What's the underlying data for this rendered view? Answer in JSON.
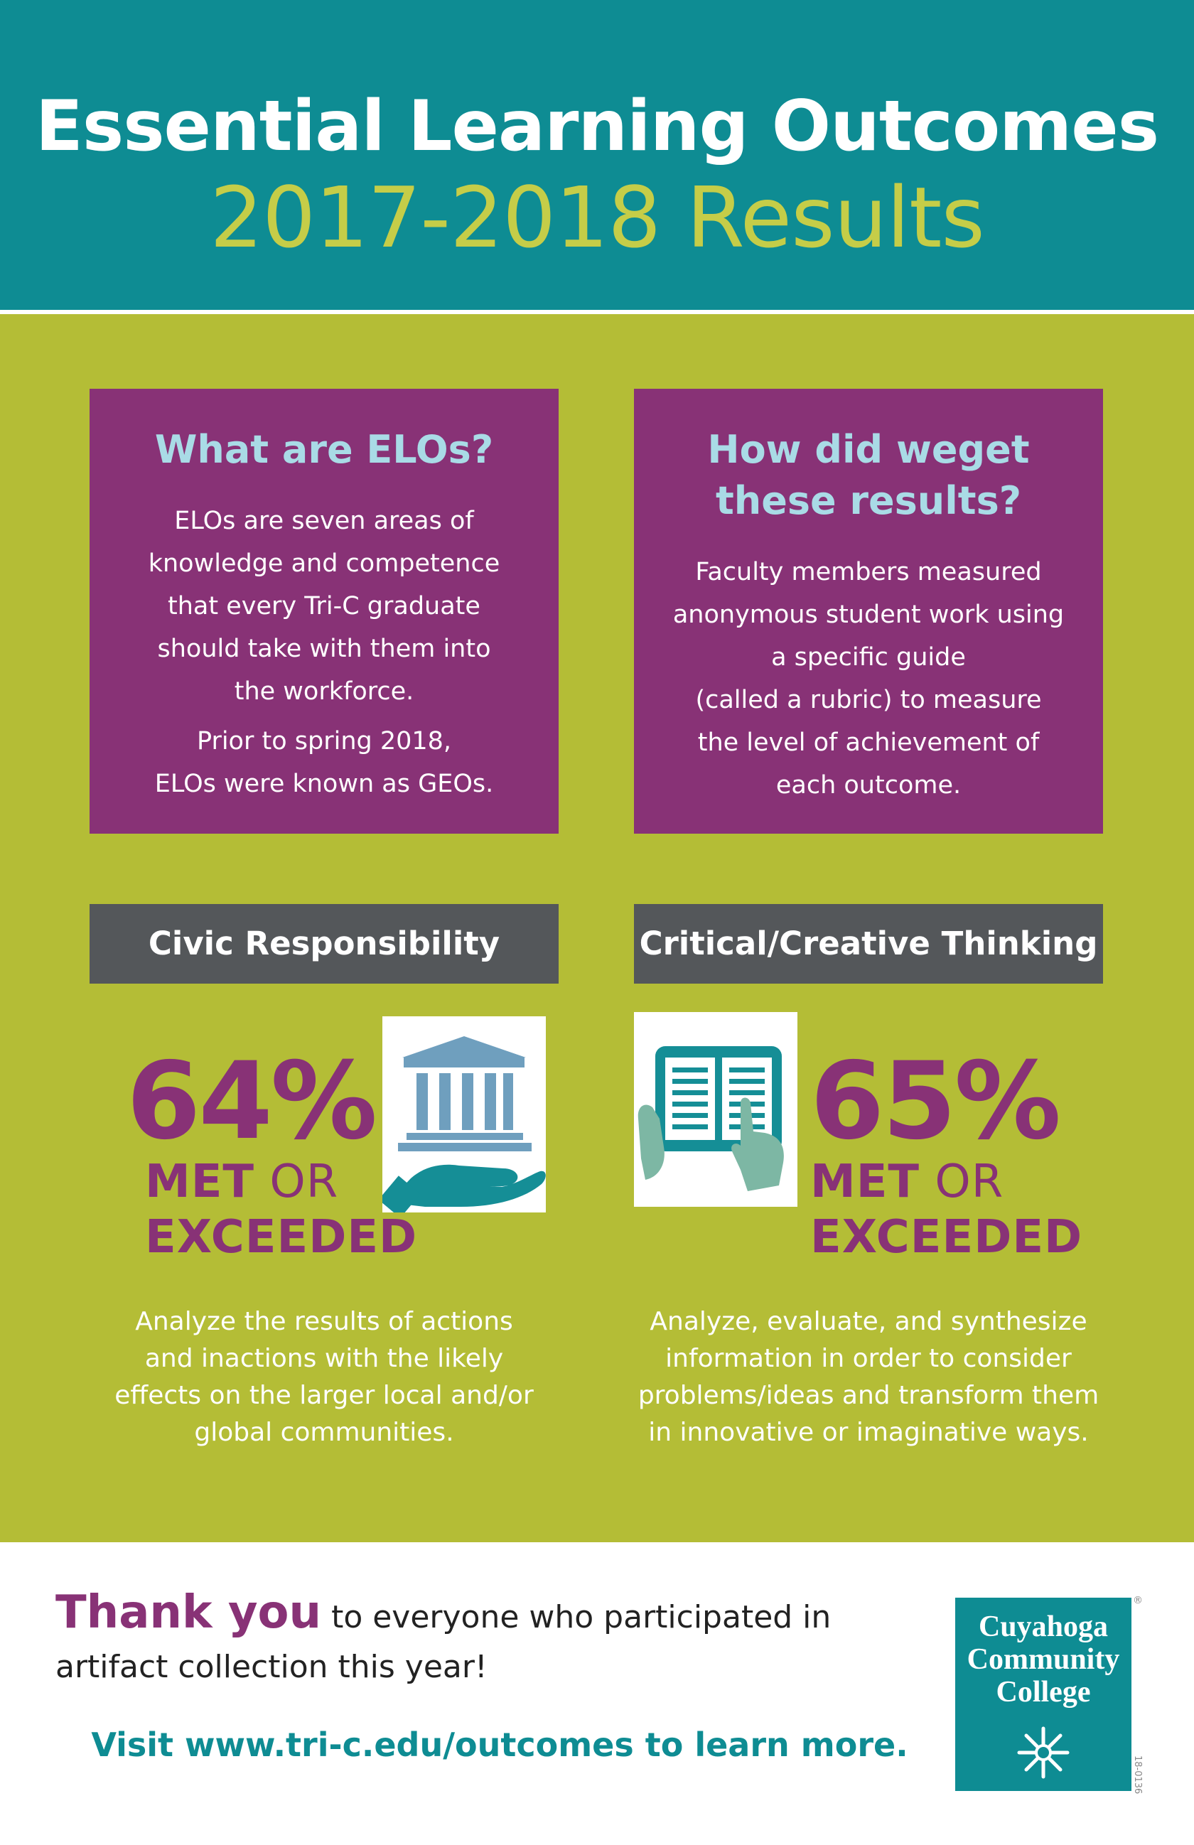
{
  "header": {
    "title": "Essential Learning Outcomes",
    "subtitle": "2017-2018 Results"
  },
  "panels": {
    "left": {
      "heading": "What are ELOs?",
      "body_lines": [
        "ELOs are seven areas of",
        "knowledge and competence",
        "that every Tri-C graduate",
        "should take with them into",
        "the workforce."
      ],
      "note_lines": [
        "Prior to spring 2018,",
        "ELOs were known as GEOs."
      ]
    },
    "right": {
      "heading_lines": [
        "How did weget",
        "these results?"
      ],
      "body_lines": [
        "Faculty members measured",
        "anonymous student work using",
        "a specific guide",
        "(called a rubric) to measure",
        "the level of achievement of",
        "each outcome."
      ]
    }
  },
  "outcomes": {
    "civic": {
      "title": "Civic Responsibility",
      "percent": "64%",
      "met": "MET",
      "or": "OR",
      "exceeded": "EXCEEDED",
      "icon": "government-building-hand-icon",
      "desc_lines": [
        "Analyze the results of actions",
        "and inactions with the likely",
        "effects on the larger local and/or",
        "global communities."
      ]
    },
    "critical": {
      "title": "Critical/Creative Thinking",
      "percent": "65%",
      "met": "MET",
      "or": "OR",
      "exceeded": "EXCEEDED",
      "icon": "tablet-reading-icon",
      "desc_lines": [
        "Analyze, evaluate, and synthesize",
        "information in order to consider",
        "problems/ideas and transform them",
        "in innovative or imaginative ways."
      ]
    }
  },
  "footer": {
    "thank_big": "Thank you",
    "thank_rest": "to everyone who participated in artifact collection this year!",
    "visit": "Visit www.tri-c.edu/outcomes to learn more.",
    "logo_lines": [
      "Cuyahoga",
      "Community",
      "College"
    ],
    "logo_mark": "®",
    "code": "18-0136"
  },
  "colors": {
    "teal": "#0e8c93",
    "green": "#b4bd36",
    "purple": "#883276",
    "gray": "#54575a",
    "subtitle_green": "#c5cd48",
    "heading_blue": "#a9dbe6"
  }
}
